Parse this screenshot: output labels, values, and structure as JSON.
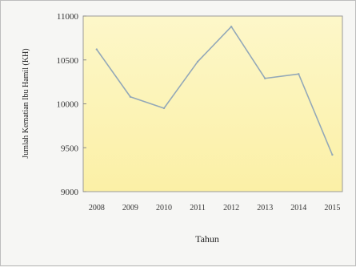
{
  "chart_data": {
    "type": "line",
    "title": "",
    "xlabel": "Tahun",
    "ylabel": "Jumlah Kematian Ibu Hamil (KH)",
    "x_tick_labels": [
      "2008",
      "2009",
      "2010",
      "2011",
      "2012",
      "2013",
      "2014",
      "2015"
    ],
    "y_tick_labels": [
      "9000",
      "9500",
      "10000",
      "10500",
      "11000"
    ],
    "ylim": [
      9000,
      11000
    ],
    "x": [
      2008,
      2009,
      2010,
      2011,
      2012,
      2013,
      2014,
      2015
    ],
    "series": [
      {
        "values": [
          10620,
          10080,
          9950,
          10480,
          10880,
          10290,
          10340,
          9420
        ],
        "color": "#93a8b8"
      }
    ],
    "plot_background": [
      "#fdf7c9",
      "#fbf0a6"
    ],
    "grid": false,
    "legend": "none"
  }
}
